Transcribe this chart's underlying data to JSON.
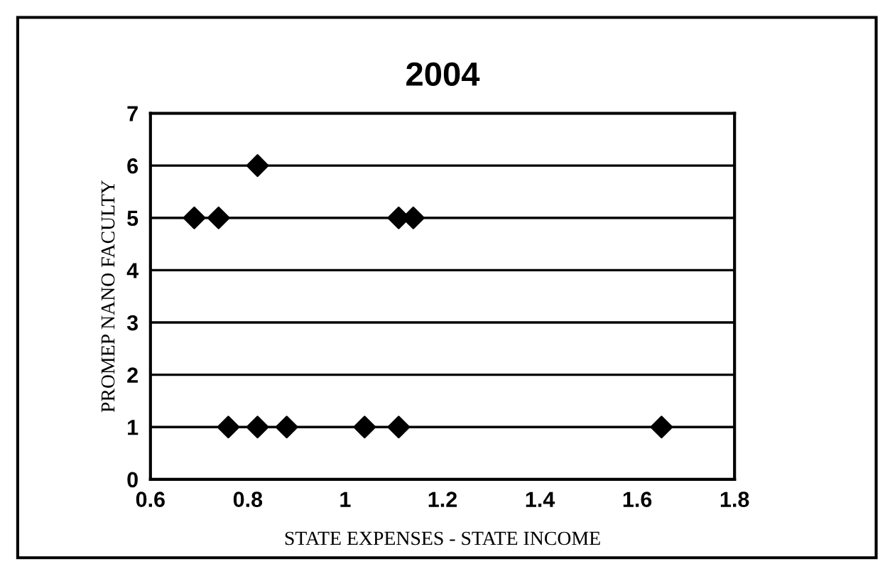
{
  "chart_data": {
    "type": "scatter",
    "title": "2004",
    "xlabel": "STATE EXPENSES - STATE INCOME",
    "ylabel": "PROMEP NANO FACULTY",
    "x": [
      0.69,
      0.74,
      0.82,
      1.11,
      1.14,
      0.76,
      0.82,
      0.88,
      1.04,
      1.11,
      1.65
    ],
    "series": [
      {
        "color": "#000000",
        "values": [
          5,
          5,
          6,
          5,
          5,
          1,
          1,
          1,
          1,
          1,
          1
        ]
      }
    ],
    "xlim": [
      0.6,
      1.8
    ],
    "xticks": [
      0.6,
      0.8,
      1,
      1.2,
      1.4,
      1.6,
      1.8
    ],
    "ylim": [
      0,
      7
    ],
    "yticks": [
      0,
      1,
      2,
      3,
      4,
      5,
      6,
      7
    ],
    "grid": "y",
    "marker": "diamond"
  }
}
